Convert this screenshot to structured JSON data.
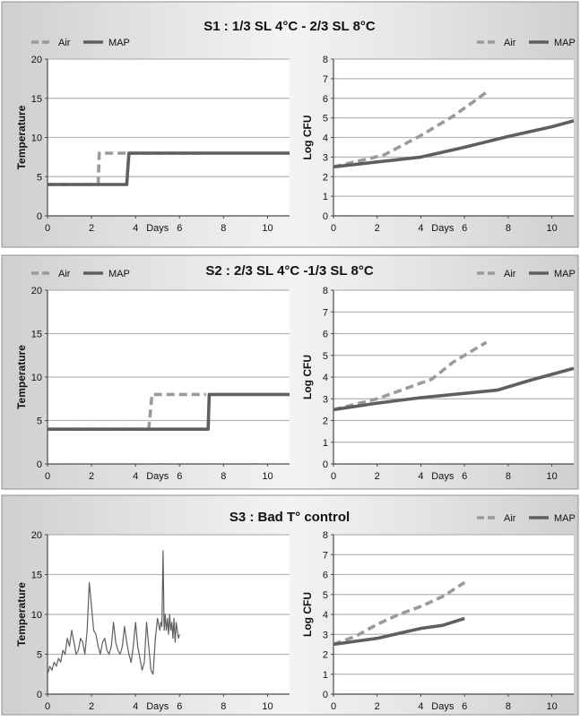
{
  "colors": {
    "panel_bg": "#ffffff",
    "band_dark": "#cfcfcf",
    "band_light": "#f2f2f2",
    "separator": "#8f8f8f",
    "grid": "#b5b5b5",
    "axis": "#4a4a4a",
    "air": "#9a9a9a",
    "map": "#5f5f5f",
    "text": "#111111"
  },
  "legend": {
    "air": "Air",
    "map": "MAP"
  },
  "chart_data": [
    {
      "panel": "S1",
      "title": "S1 : 1/3 SL 4°C - 2/3 SL 8°C",
      "type": "line",
      "ylabel": "Temperature",
      "xlabel": "Days",
      "xlim": [
        0,
        11
      ],
      "ylim": [
        0,
        20
      ],
      "xticks": [
        0,
        2,
        4,
        6,
        8,
        10
      ],
      "yticks": [
        0,
        5,
        10,
        15,
        20
      ],
      "legend": true,
      "series": [
        {
          "name": "Air",
          "style": "dashed",
          "x": [
            0,
            2.3,
            2.35,
            7
          ],
          "y": [
            4,
            4,
            8,
            8
          ]
        },
        {
          "name": "MAP",
          "style": "solid",
          "x": [
            0,
            3.6,
            3.7,
            11
          ],
          "y": [
            4,
            4,
            8,
            8
          ]
        }
      ]
    },
    {
      "panel": "S1",
      "title": "",
      "type": "line",
      "ylabel": "Log CFU",
      "xlabel": "Days",
      "xlim": [
        0,
        11
      ],
      "ylim": [
        0,
        8
      ],
      "xticks": [
        0,
        2,
        4,
        6,
        8,
        10
      ],
      "yticks": [
        0,
        1,
        2,
        3,
        4,
        5,
        6,
        7,
        8
      ],
      "legend": true,
      "series": [
        {
          "name": "Air",
          "style": "dashed",
          "x": [
            0,
            2.3,
            4,
            5.5,
            7
          ],
          "y": [
            2.5,
            3.1,
            4.1,
            5.1,
            6.3
          ]
        },
        {
          "name": "MAP",
          "style": "solid",
          "x": [
            0,
            2,
            4,
            6,
            8,
            10,
            11
          ],
          "y": [
            2.5,
            2.75,
            3,
            3.5,
            4.05,
            4.55,
            4.85
          ]
        }
      ]
    },
    {
      "panel": "S2",
      "title": "S2 : 2/3 SL 4°C -1/3 SL 8°C",
      "type": "line",
      "ylabel": "Temperature",
      "xlabel": "Days",
      "xlim": [
        0,
        11
      ],
      "ylim": [
        0,
        20
      ],
      "xticks": [
        0,
        2,
        4,
        6,
        8,
        10
      ],
      "yticks": [
        0,
        5,
        10,
        15,
        20
      ],
      "legend": true,
      "series": [
        {
          "name": "Air",
          "style": "dashed",
          "x": [
            0,
            4.6,
            4.75,
            7.2
          ],
          "y": [
            4,
            4,
            8,
            8
          ]
        },
        {
          "name": "MAP",
          "style": "solid",
          "x": [
            0,
            7.3,
            7.35,
            11
          ],
          "y": [
            4,
            4,
            8,
            8
          ]
        }
      ]
    },
    {
      "panel": "S2",
      "title": "",
      "type": "line",
      "ylabel": "Log CFU",
      "xlabel": "Days",
      "xlim": [
        0,
        11
      ],
      "ylim": [
        0,
        8
      ],
      "xticks": [
        0,
        2,
        4,
        6,
        8,
        10
      ],
      "yticks": [
        0,
        1,
        2,
        3,
        4,
        5,
        6,
        7,
        8
      ],
      "legend": true,
      "series": [
        {
          "name": "Air",
          "style": "dashed",
          "x": [
            0,
            2,
            4.5,
            5.5,
            7
          ],
          "y": [
            2.5,
            3.0,
            3.9,
            4.7,
            5.6
          ]
        },
        {
          "name": "MAP",
          "style": "solid",
          "x": [
            0,
            2,
            4,
            6,
            7.5,
            9,
            11
          ],
          "y": [
            2.5,
            2.8,
            3.05,
            3.25,
            3.4,
            3.85,
            4.4
          ]
        }
      ]
    },
    {
      "panel": "S3",
      "title": "S3 : Bad T° control",
      "type": "line",
      "ylabel": "Temperature",
      "xlabel": "Days",
      "xlim": [
        0,
        11
      ],
      "ylim": [
        0,
        20
      ],
      "xticks": [
        0,
        2,
        4,
        6,
        8,
        10
      ],
      "yticks": [
        0,
        5,
        10,
        15,
        20
      ],
      "legend": false,
      "series": [
        {
          "name": "",
          "style": "thin",
          "x": [
            0,
            0.1,
            0.2,
            0.3,
            0.4,
            0.5,
            0.6,
            0.7,
            0.8,
            0.9,
            1.0,
            1.1,
            1.2,
            1.3,
            1.4,
            1.5,
            1.6,
            1.7,
            1.8,
            1.9,
            2.0,
            2.1,
            2.2,
            2.3,
            2.4,
            2.5,
            2.6,
            2.7,
            2.8,
            2.9,
            3.0,
            3.1,
            3.2,
            3.3,
            3.4,
            3.5,
            3.6,
            3.7,
            3.8,
            3.9,
            4.0,
            4.1,
            4.2,
            4.3,
            4.4,
            4.5,
            4.6,
            4.7,
            4.8,
            4.9,
            5.0,
            5.1,
            5.15,
            5.2,
            5.25,
            5.3,
            5.35,
            5.4,
            5.45,
            5.5,
            5.55,
            5.6,
            5.65,
            5.7,
            5.75,
            5.8,
            5.85,
            5.9,
            5.95,
            6.0
          ],
          "y": [
            2.5,
            3.5,
            3.0,
            4.0,
            3.5,
            4.5,
            4.0,
            5.5,
            5.0,
            7.0,
            6.0,
            8.0,
            6.5,
            5.0,
            5.5,
            7.0,
            6.5,
            5.0,
            8.0,
            14.0,
            11.0,
            8.0,
            7.5,
            6.0,
            5.0,
            6.5,
            7.0,
            5.5,
            5.0,
            6.0,
            9.0,
            6.5,
            5.5,
            5.0,
            6.0,
            8.5,
            6.5,
            5.0,
            4.0,
            6.0,
            9.0,
            6.0,
            4.5,
            3.0,
            4.0,
            9.0,
            6.0,
            3.0,
            2.5,
            7.0,
            9.5,
            8.0,
            9.0,
            8.5,
            18.0,
            8.0,
            10.0,
            8.0,
            9.5,
            7.5,
            10.0,
            8.0,
            9.0,
            7.0,
            9.5,
            6.5,
            9.0,
            8.0,
            7.0,
            7.5
          ]
        }
      ]
    },
    {
      "panel": "S3",
      "title": "",
      "type": "line",
      "ylabel": "Log CFU",
      "xlabel": "Days",
      "xlim": [
        0,
        11
      ],
      "ylim": [
        0,
        8
      ],
      "xticks": [
        0,
        2,
        4,
        6,
        8,
        10
      ],
      "yticks": [
        0,
        1,
        2,
        3,
        4,
        5,
        6,
        7,
        8
      ],
      "legend": true,
      "series": [
        {
          "name": "Air",
          "style": "dashed",
          "x": [
            0,
            1,
            2,
            3,
            4,
            5,
            6
          ],
          "y": [
            2.5,
            2.9,
            3.5,
            4.0,
            4.4,
            4.9,
            5.6
          ]
        },
        {
          "name": "MAP",
          "style": "solid",
          "x": [
            0,
            1,
            2,
            3,
            4,
            5,
            6
          ],
          "y": [
            2.5,
            2.65,
            2.8,
            3.05,
            3.3,
            3.45,
            3.8
          ]
        }
      ]
    }
  ]
}
